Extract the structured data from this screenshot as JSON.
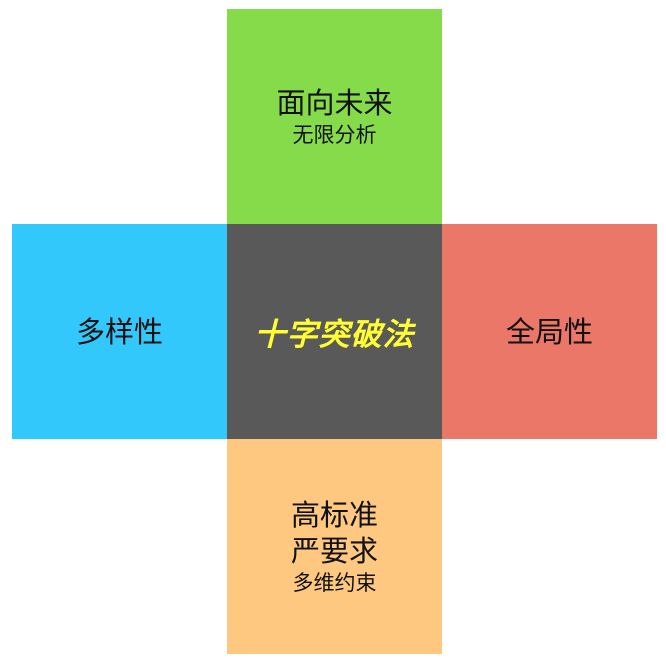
{
  "diagram": {
    "center": {
      "label": "十字突破法",
      "color": "#ffff33",
      "background": "#595959"
    },
    "top": {
      "title": "面向未来",
      "subtitle": "无限分析",
      "background": "#86db4a"
    },
    "left": {
      "title": "多样性",
      "background": "#33c8fb"
    },
    "right": {
      "title": "全局性",
      "background": "#ea7767"
    },
    "bottom": {
      "title_line1": "高标准",
      "title_line2": "严要求",
      "subtitle": "多维约束",
      "background": "#fec880"
    }
  }
}
